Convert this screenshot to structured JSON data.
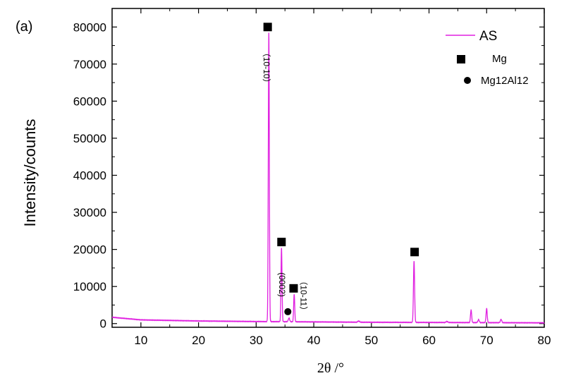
{
  "panel_label": "(a)",
  "chart_data": {
    "type": "line",
    "xlabel": "2θ /°",
    "ylabel": "Intensity/counts",
    "xlim": [
      5,
      80
    ],
    "ylim": [
      -1000,
      85000
    ],
    "x_ticks": [
      10,
      20,
      30,
      40,
      50,
      60,
      70,
      80
    ],
    "y_ticks": [
      0,
      10000,
      20000,
      30000,
      40000,
      50000,
      60000,
      70000,
      80000
    ],
    "x_tick_labels": [
      "10",
      "20",
      "30",
      "40",
      "50",
      "60",
      "70",
      "80"
    ],
    "y_tick_labels": [
      "0",
      "10000",
      "20000",
      "30000",
      "40000",
      "50000",
      "60000",
      "70000",
      "80000"
    ],
    "grid": false,
    "legend_position": "top-right",
    "color": "#e020e0",
    "series": [
      {
        "name": "AS",
        "baseline": [
          [
            5,
            1700
          ],
          [
            10,
            1000
          ],
          [
            20,
            700
          ],
          [
            30,
            550
          ],
          [
            40,
            450
          ],
          [
            50,
            350
          ],
          [
            60,
            300
          ],
          [
            70,
            250
          ],
          [
            80,
            200
          ]
        ],
        "peaks": [
          {
            "x": 32.2,
            "y": 78000,
            "width": 0.09
          },
          {
            "x": 34.4,
            "y": 20000,
            "width": 0.09
          },
          {
            "x": 35.7,
            "y": 1000,
            "width": 0.12
          },
          {
            "x": 36.6,
            "y": 7500,
            "width": 0.09
          },
          {
            "x": 47.8,
            "y": 300,
            "width": 0.15
          },
          {
            "x": 57.4,
            "y": 16600,
            "width": 0.1
          },
          {
            "x": 63.1,
            "y": 300,
            "width": 0.15
          },
          {
            "x": 67.3,
            "y": 3400,
            "width": 0.1
          },
          {
            "x": 68.6,
            "y": 800,
            "width": 0.12
          },
          {
            "x": 70.0,
            "y": 3800,
            "width": 0.1
          },
          {
            "x": 72.5,
            "y": 900,
            "width": 0.12
          }
        ]
      }
    ],
    "legend": [
      {
        "label": "AS",
        "symbol": "line"
      },
      {
        "label": "Mg",
        "symbol": "square"
      },
      {
        "label": "Mg12Al12",
        "symbol": "circle"
      }
    ],
    "markers": [
      {
        "symbol": "square",
        "x": 32.0,
        "y": 80000
      },
      {
        "symbol": "square",
        "x": 34.4,
        "y": 22000
      },
      {
        "symbol": "square",
        "x": 36.5,
        "y": 9500
      },
      {
        "symbol": "square",
        "x": 57.5,
        "y": 19300
      },
      {
        "symbol": "circle",
        "x": 35.5,
        "y": 3200
      }
    ],
    "annotations": [
      {
        "text": "（10-10）",
        "x": 31.3,
        "y": 69000
      },
      {
        "text": "(0002)",
        "x": 34.0,
        "y": 10500
      },
      {
        "text": "（10-11）",
        "x": 37.7,
        "y": 7500
      }
    ]
  }
}
